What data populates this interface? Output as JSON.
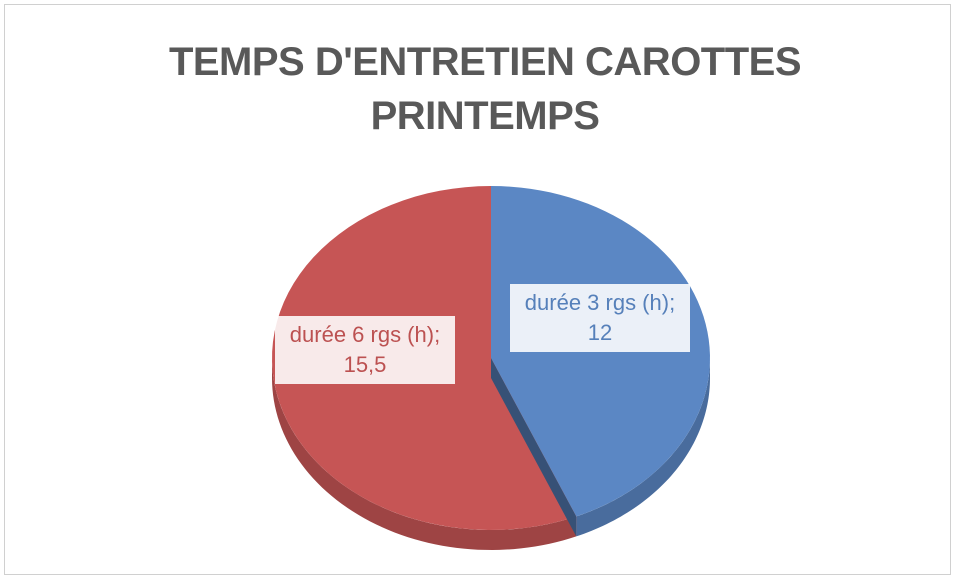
{
  "chart_data": {
    "type": "pie",
    "title": "TEMPS D'ENTRETIEN CAROTTES PRINTEMPS",
    "categories": [
      "durée 3 rgs (h)",
      "durée 6 rgs (h)"
    ],
    "values": [
      12,
      15.5
    ],
    "value_labels": [
      "12",
      "15,5"
    ],
    "label_separator": ";",
    "colors": [
      "#5b87c4",
      "#c65555"
    ]
  }
}
